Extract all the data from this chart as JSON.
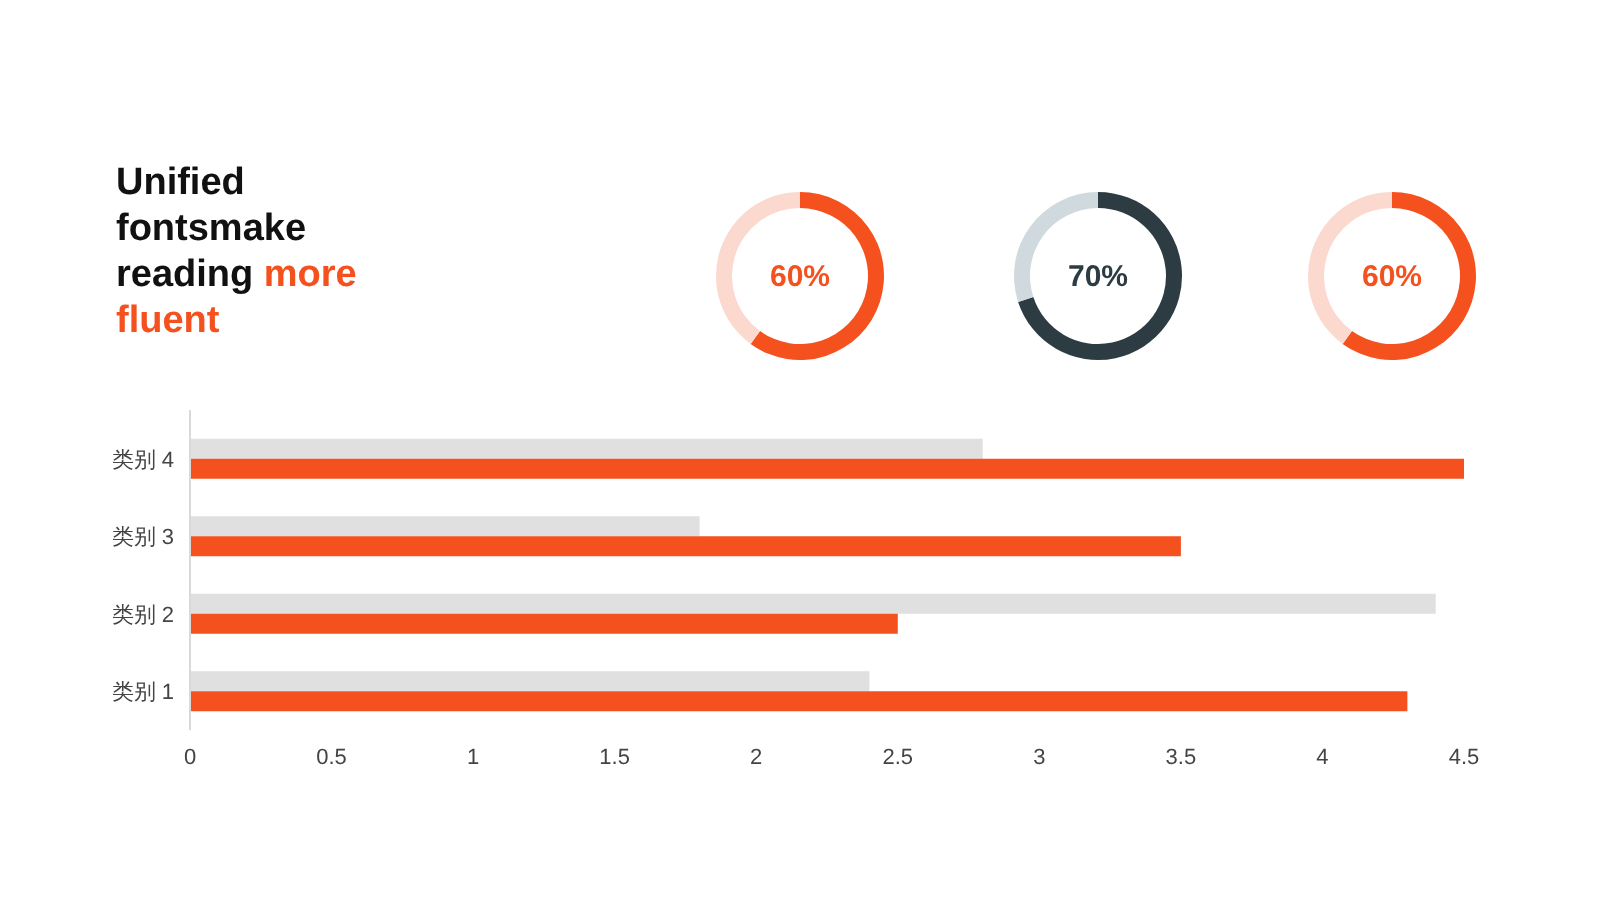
{
  "chart_data": [
    {
      "type": "other",
      "annotations": [
        "Unified fontsmake reading",
        "more fluent"
      ]
    },
    {
      "type": "donut",
      "categories": [
        null,
        null
      ],
      "values": [
        60,
        40
      ],
      "colors": [
        "#f4511e",
        "#fbd9cf"
      ],
      "value_labels": [
        "60%",
        null
      ]
    },
    {
      "type": "donut",
      "categories": [
        null,
        null
      ],
      "values": [
        70,
        30
      ],
      "colors": [
        "#2d3c43",
        "#d0d9de"
      ],
      "value_labels": [
        "70%",
        null
      ]
    },
    {
      "type": "donut",
      "categories": [
        null,
        null
      ],
      "values": [
        60,
        40
      ],
      "colors": [
        "#f4511e",
        "#fbd9cf"
      ],
      "value_labels": [
        "60%",
        null
      ]
    },
    {
      "type": "bar",
      "orientation": "horizontal",
      "categories": [
        "类别 4",
        "类别 3",
        "类别 2",
        "类别 1"
      ],
      "series": [
        {
          "color": "#e0e0e0",
          "values": [
            2.8,
            1.8,
            4.4,
            2.4
          ]
        },
        {
          "color": "#f4511e",
          "values": [
            4.5,
            3.5,
            2.5,
            4.3
          ]
        }
      ],
      "xlim": [
        0,
        4.5
      ],
      "xticks": [
        0,
        0.5,
        1,
        1.5,
        2,
        2.5,
        3,
        3.5,
        4,
        4.5
      ]
    }
  ]
}
